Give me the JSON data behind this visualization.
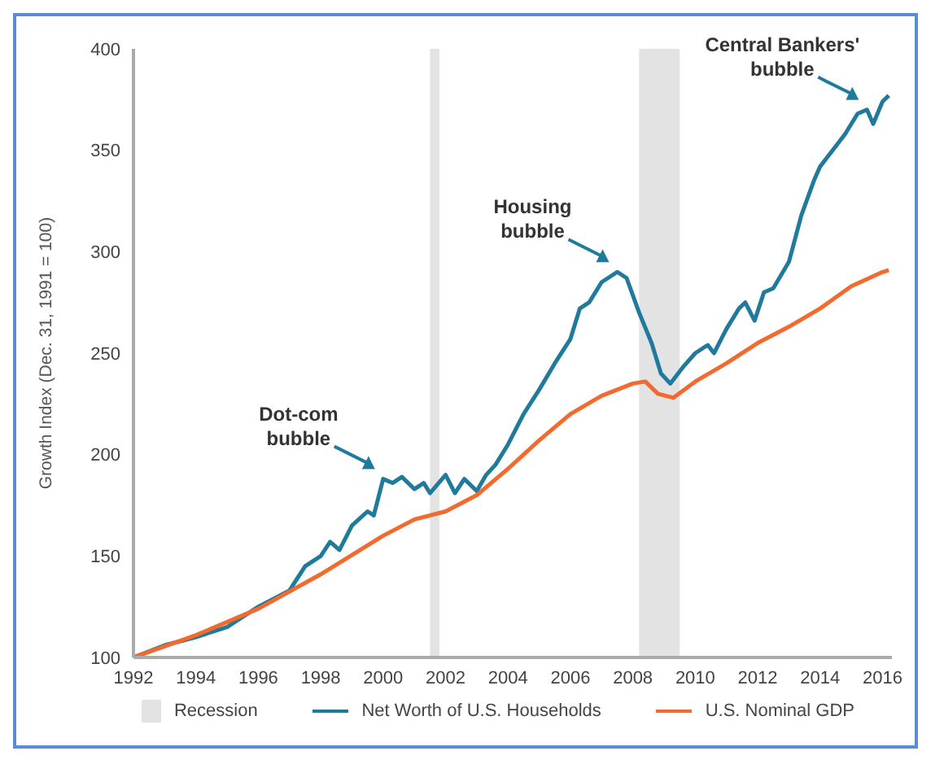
{
  "chart_data": {
    "type": "line",
    "ylabel": "Growth Index (Dec. 31, 1991 = 100)",
    "xlim": [
      1992,
      2016.3
    ],
    "xticks": [
      1992,
      1994,
      1996,
      1998,
      2000,
      2002,
      2004,
      2006,
      2008,
      2010,
      2012,
      2014,
      2016
    ],
    "ylim": [
      100,
      400
    ],
    "yticks": [
      100,
      150,
      200,
      250,
      300,
      350,
      400
    ],
    "grid": false,
    "legend": "bottom",
    "line_style": "solid",
    "marker": "none",
    "bands": [
      {
        "axis": "x",
        "from": 2001.5,
        "to": 2001.8,
        "label": "Recession",
        "color": "#e3e3e3"
      },
      {
        "axis": "x",
        "from": 2008.2,
        "to": 2009.5,
        "color": "#e3e3e3"
      }
    ],
    "annotations": [
      {
        "text": "Dot-com\nbubble",
        "x": 2000,
        "y": 188
      },
      {
        "text": "Housing\nbubble",
        "x": 2007.5,
        "y": 290
      },
      {
        "text": "Central Bankers'\nbubble",
        "x": 2015.5,
        "y": 370
      }
    ],
    "series": [
      {
        "name": "Net Worth of U.S. Households",
        "color": "#1f7a9c",
        "x": [
          1992,
          1993,
          1994,
          1995,
          1996,
          1997,
          1997.5,
          1998,
          1998.3,
          1998.6,
          1999,
          1999.5,
          1999.7,
          2000,
          2000.3,
          2000.6,
          2001,
          2001.3,
          2001.5,
          2002,
          2002.3,
          2002.6,
          2003,
          2003.3,
          2003.6,
          2004,
          2004.5,
          2005,
          2005.5,
          2006,
          2006.3,
          2006.6,
          2007,
          2007.5,
          2007.8,
          2008.2,
          2008.6,
          2008.9,
          2009.2,
          2009.6,
          2010,
          2010.4,
          2010.6,
          2011,
          2011.4,
          2011.6,
          2011.9,
          2012.2,
          2012.5,
          2013,
          2013.4,
          2013.8,
          2014,
          2014.4,
          2014.8,
          2015.2,
          2015.5,
          2015.7,
          2016,
          2016.2
        ],
        "values": [
          100,
          106,
          110,
          115,
          125,
          133,
          145,
          150,
          157,
          153,
          165,
          172,
          170,
          188,
          186,
          189,
          183,
          186,
          181,
          190,
          181,
          188,
          182,
          190,
          195,
          205,
          220,
          232,
          245,
          257,
          272,
          275,
          285,
          290,
          287,
          270,
          255,
          240,
          235,
          243,
          250,
          254,
          250,
          262,
          272,
          275,
          266,
          280,
          282,
          295,
          318,
          335,
          342,
          350,
          358,
          368,
          370,
          363,
          374,
          377
        ]
      },
      {
        "name": "U.S. Nominal GDP",
        "color": "#f26a2e",
        "x": [
          1992,
          1994,
          1996,
          1998,
          2000,
          2001,
          2002,
          2003,
          2004,
          2005,
          2006,
          2007,
          2008,
          2008.4,
          2008.8,
          2009.3,
          2010,
          2011,
          2012,
          2013,
          2014,
          2015,
          2016,
          2016.2
        ],
        "values": [
          100,
          111,
          124,
          141,
          160,
          168,
          172,
          180,
          193,
          207,
          220,
          229,
          235,
          236,
          230,
          228,
          236,
          245,
          255,
          263,
          272,
          283,
          290,
          291
        ]
      }
    ]
  }
}
